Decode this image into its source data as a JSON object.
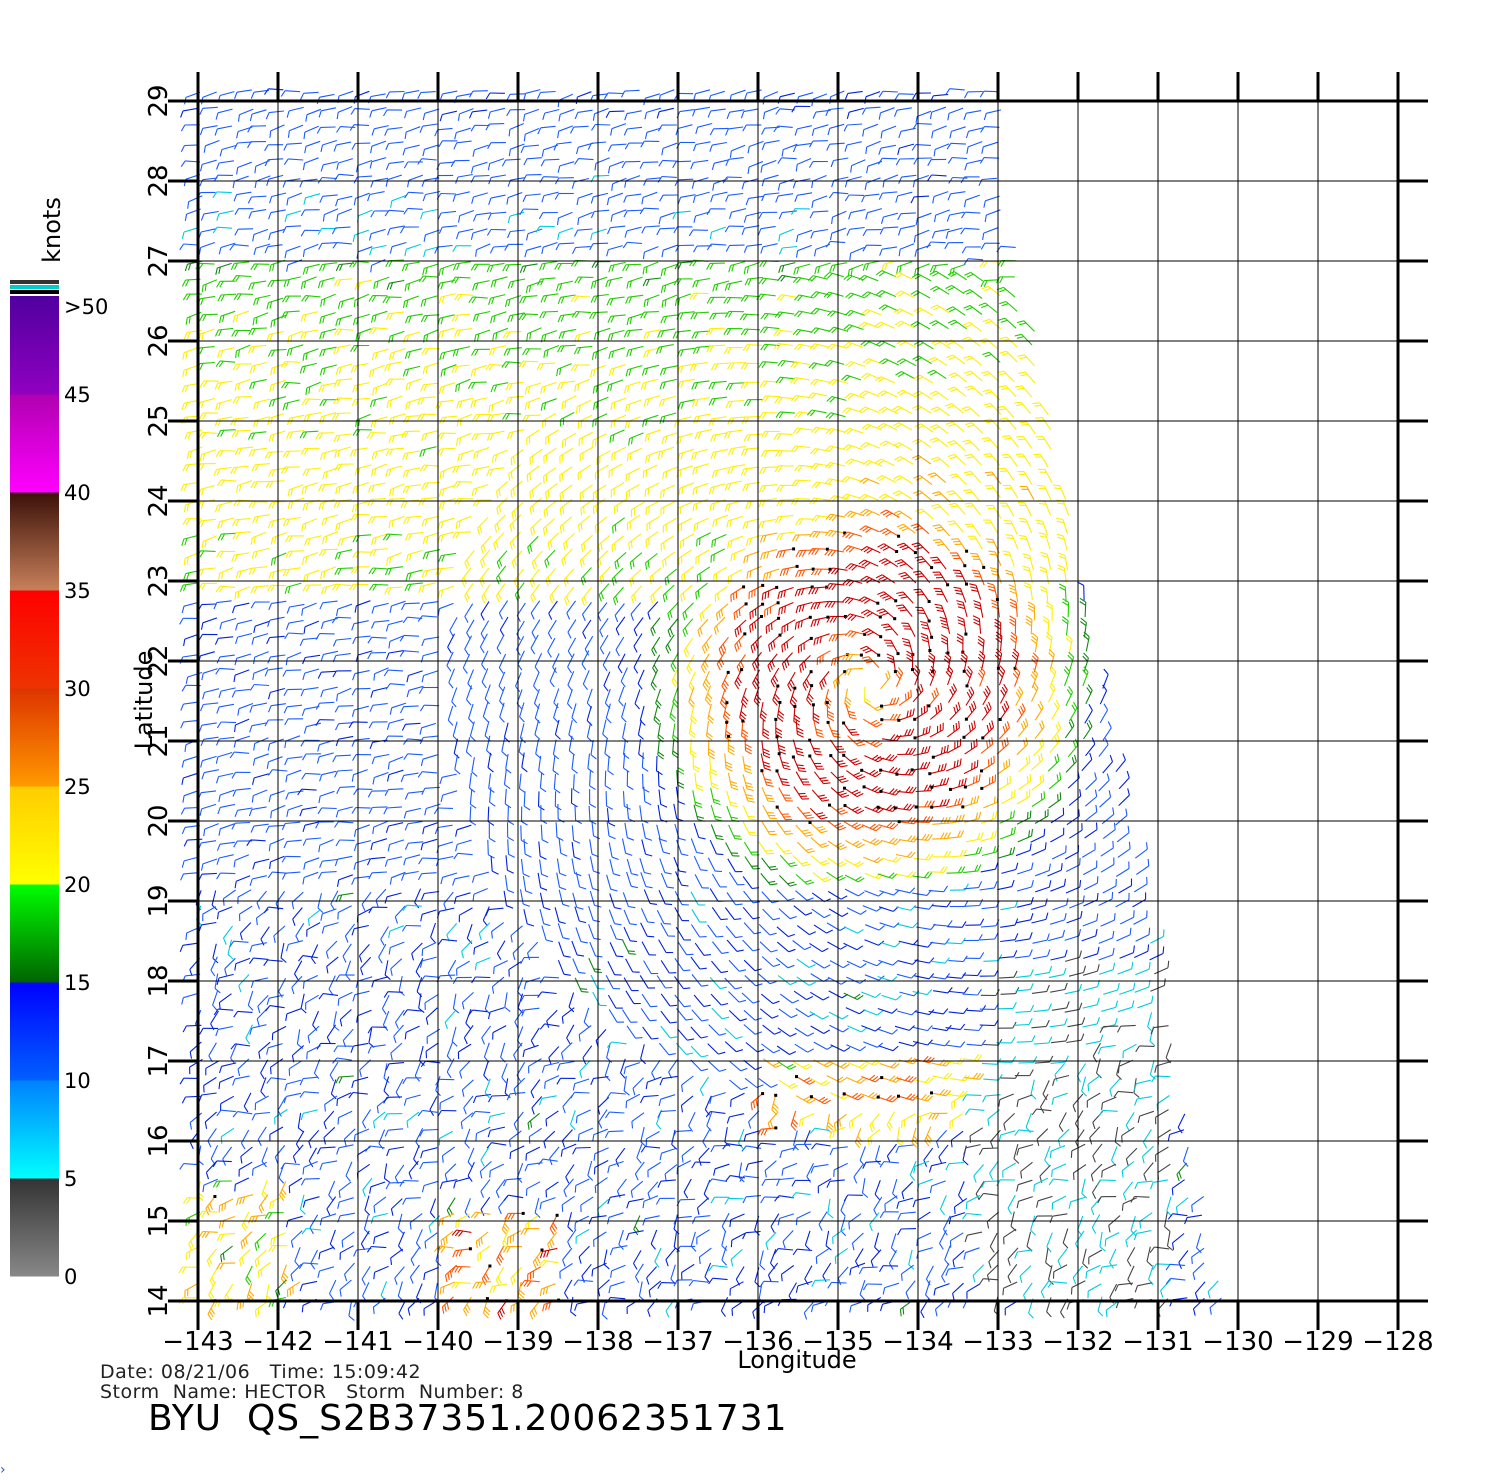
{
  "chart_data": {
    "type": "scatter",
    "subtype": "wind-barb field",
    "xlabel": "Longitude",
    "ylabel": "Latitude",
    "xlim": [
      -143,
      -128
    ],
    "ylim": [
      14,
      29
    ],
    "x_ticks": [
      -143,
      -142,
      -141,
      -140,
      -139,
      -138,
      -137,
      -136,
      -135,
      -134,
      -133,
      -132,
      -131,
      -130,
      -129,
      -128
    ],
    "y_ticks": [
      14,
      15,
      16,
      17,
      18,
      19,
      20,
      21,
      22,
      23,
      24,
      25,
      26,
      27,
      28,
      29
    ],
    "grid": true,
    "storm_center": {
      "lon": -134.6,
      "lat": 21.7
    },
    "colorbar": {
      "title": "knots",
      "labels": [
        "0",
        "5",
        "10",
        "15",
        "20",
        "25",
        "30",
        "35",
        "40",
        "45",
        ">50"
      ],
      "bands": [
        {
          "from": 0,
          "to": 5,
          "top": "#333333",
          "bottom": "#888888"
        },
        {
          "from": 5,
          "to": 10,
          "top": "#0080ff",
          "bottom": "#00ffff"
        },
        {
          "from": 10,
          "to": 15,
          "top": "#0000ff",
          "bottom": "#0060ff"
        },
        {
          "from": 15,
          "to": 20,
          "top": "#00ff00",
          "bottom": "#006400"
        },
        {
          "from": 20,
          "to": 25,
          "top": "#ffcc00",
          "bottom": "#ffff00"
        },
        {
          "from": 25,
          "to": 30,
          "top": "#dd3300",
          "bottom": "#ff9900"
        },
        {
          "from": 30,
          "to": 35,
          "top": "#ff0000",
          "bottom": "#ee3300"
        },
        {
          "from": 35,
          "to": 40,
          "top": "#3a1008",
          "bottom": "#c8805a"
        },
        {
          "from": 40,
          "to": 45,
          "top": "#b000b0",
          "bottom": "#ff00ff"
        },
        {
          "from": 45,
          "to": 50,
          "top": "#5000a0",
          "bottom": "#9000c0"
        }
      ],
      "cap_colors": [
        "#333333",
        "#00cccc",
        "#000000"
      ]
    },
    "speed_colors": [
      "#444444",
      "#00ccdd",
      "#1a5cff",
      "#0022dd",
      "#118811",
      "#22cc00",
      "#ffee00",
      "#ffaa00",
      "#ff5500",
      "#cc0000",
      "#cc00cc"
    ]
  },
  "footer": {
    "date_time": "Date: 08/21/06   Time: 15:09:42",
    "storm_info": "Storm  Name: HECTOR   Storm  Number: 8",
    "title": "BYU  QS_S2B37351.20062351731"
  }
}
